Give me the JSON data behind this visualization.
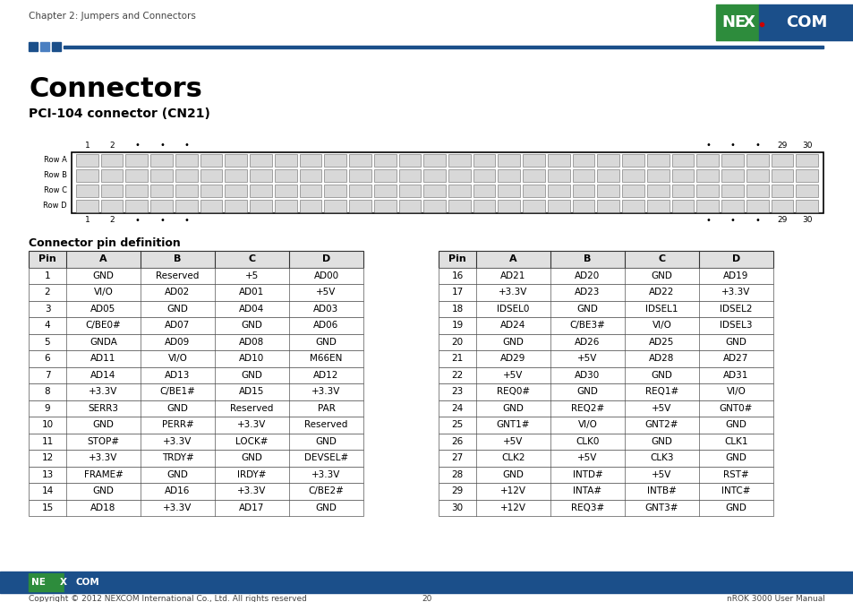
{
  "page_title": "Chapter 2: Jumpers and Connectors",
  "section_title": "Connectors",
  "subsection_title": "PCI-104 connector (CN21)",
  "connector_label": "Connector pin definition",
  "table1_headers": [
    "Pin",
    "A",
    "B",
    "C",
    "D"
  ],
  "table1_rows": [
    [
      "1",
      "GND",
      "Reserved",
      "+5",
      "AD00"
    ],
    [
      "2",
      "VI/O",
      "AD02",
      "AD01",
      "+5V"
    ],
    [
      "3",
      "AD05",
      "GND",
      "AD04",
      "AD03"
    ],
    [
      "4",
      "C/BE0#",
      "AD07",
      "GND",
      "AD06"
    ],
    [
      "5",
      "GNDA",
      "AD09",
      "AD08",
      "GND"
    ],
    [
      "6",
      "AD11",
      "VI/O",
      "AD10",
      "M66EN"
    ],
    [
      "7",
      "AD14",
      "AD13",
      "GND",
      "AD12"
    ],
    [
      "8",
      "+3.3V",
      "C/BE1#",
      "AD15",
      "+3.3V"
    ],
    [
      "9",
      "SERR3",
      "GND",
      "Reserved",
      "PAR"
    ],
    [
      "10",
      "GND",
      "PERR#",
      "+3.3V",
      "Reserved"
    ],
    [
      "11",
      "STOP#",
      "+3.3V",
      "LOCK#",
      "GND"
    ],
    [
      "12",
      "+3.3V",
      "TRDY#",
      "GND",
      "DEVSEL#"
    ],
    [
      "13",
      "FRAME#",
      "GND",
      "IRDY#",
      "+3.3V"
    ],
    [
      "14",
      "GND",
      "AD16",
      "+3.3V",
      "C/BE2#"
    ],
    [
      "15",
      "AD18",
      "+3.3V",
      "AD17",
      "GND"
    ]
  ],
  "table2_headers": [
    "Pin",
    "A",
    "B",
    "C",
    "D"
  ],
  "table2_rows": [
    [
      "16",
      "AD21",
      "AD20",
      "GND",
      "AD19"
    ],
    [
      "17",
      "+3.3V",
      "AD23",
      "AD22",
      "+3.3V"
    ],
    [
      "18",
      "IDSEL0",
      "GND",
      "IDSEL1",
      "IDSEL2"
    ],
    [
      "19",
      "AD24",
      "C/BE3#",
      "VI/O",
      "IDSEL3"
    ],
    [
      "20",
      "GND",
      "AD26",
      "AD25",
      "GND"
    ],
    [
      "21",
      "AD29",
      "+5V",
      "AD28",
      "AD27"
    ],
    [
      "22",
      "+5V",
      "AD30",
      "GND",
      "AD31"
    ],
    [
      "23",
      "REQ0#",
      "GND",
      "REQ1#",
      "VI/O"
    ],
    [
      "24",
      "GND",
      "REQ2#",
      "+5V",
      "GNT0#"
    ],
    [
      "25",
      "GNT1#",
      "VI/O",
      "GNT2#",
      "GND"
    ],
    [
      "26",
      "+5V",
      "CLK0",
      "GND",
      "CLK1"
    ],
    [
      "27",
      "CLK2",
      "+5V",
      "CLK3",
      "GND"
    ],
    [
      "28",
      "GND",
      "INTD#",
      "+5V",
      "RST#"
    ],
    [
      "29",
      "+12V",
      "INTA#",
      "INTB#",
      "INTC#"
    ],
    [
      "30",
      "+12V",
      "REQ3#",
      "GNT3#",
      "GND"
    ]
  ],
  "footer_text": "Copyright © 2012 NEXCOM International Co., Ltd. All rights reserved",
  "footer_page": "20",
  "footer_right": "nROK 3000 User Manual",
  "navy": "#1b4f8a",
  "green": "#2d8c3c",
  "red_dot": "#cc0000",
  "sq1": "#1b4f8a",
  "sq2": "#4a7fc1",
  "sq3": "#1b4f8a"
}
